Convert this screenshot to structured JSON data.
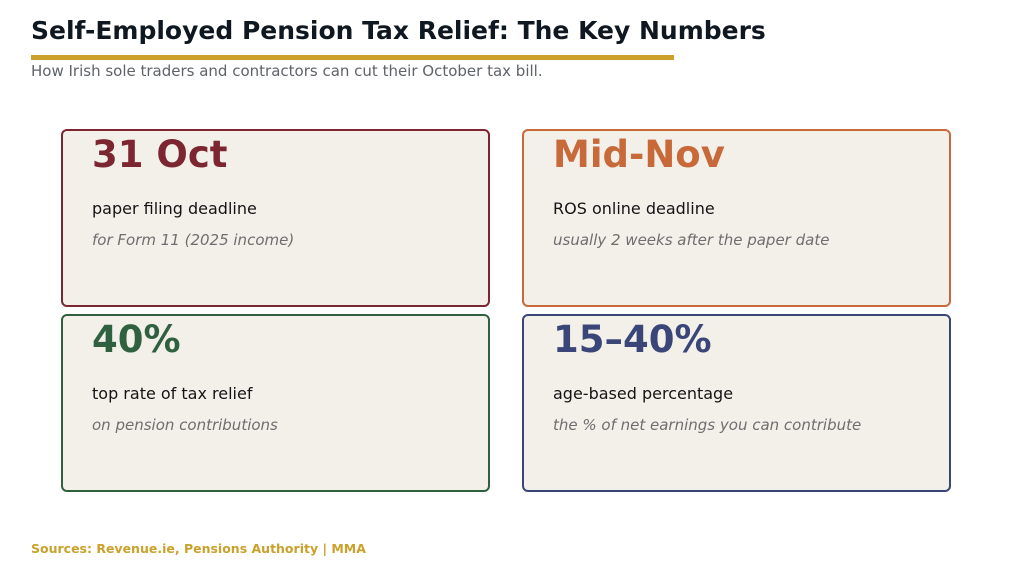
{
  "header": {
    "title": "Self-Employed Pension Tax Relief: The Key Numbers",
    "subtitle": "How Irish sole traders and contractors can cut their October tax bill.",
    "rule_color": "#c9a12b"
  },
  "cards": [
    {
      "value": "31 Oct",
      "label": "paper filing deadline",
      "note": "for Form 11 (2025 income)",
      "color": "#7b2631"
    },
    {
      "value": "Mid-Nov",
      "label": "ROS online deadline",
      "note": "usually 2 weeks after the paper date",
      "color": "#c8693a"
    },
    {
      "value": "40%",
      "label": "top rate of tax relief",
      "note": "on pension contributions",
      "color": "#2f6140"
    },
    {
      "value": "15–40%",
      "label": "age-based percentage",
      "note": "the % of net earnings you can contribute",
      "color": "#3a4678"
    }
  ],
  "footer": {
    "sources": "Sources: Revenue.ie, Pensions Authority  |  MMA"
  }
}
